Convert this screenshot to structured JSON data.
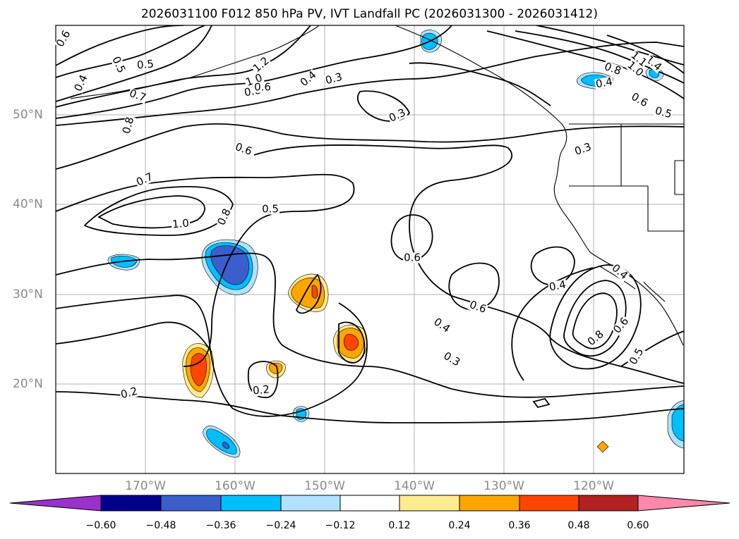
{
  "title": "2026031100 F012 850 hPa PV, IVT Landfall PC (2026031300 - 2026031412)",
  "axes": {
    "lat_labels": [
      "50°N",
      "40°N",
      "30°N",
      "20°N"
    ],
    "lon_labels": [
      "170°W",
      "160°W",
      "150°W",
      "140°W",
      "130°W",
      "120°W"
    ]
  },
  "contour_labels": [
    "0.6",
    "0.5",
    "0.5",
    "0.4",
    "0.7",
    "0.8",
    "1.2",
    "1.0",
    "0.8",
    "0.6",
    "0.4",
    "0.3",
    "0.3",
    "0.6",
    "0.7",
    "1.0",
    "0.8",
    "0.5",
    "0.3",
    "1.4",
    "1.1",
    "1.0",
    "0.8",
    "0.6",
    "0.5",
    "0.4",
    "0.6",
    "0.4",
    "0.6",
    "0.4",
    "0.3",
    "0.4",
    "0.6",
    "0.8",
    "0.5",
    "0.2",
    "0.2"
  ],
  "colorbar": {
    "ticks": [
      "−0.60",
      "−0.48",
      "−0.36",
      "−0.24",
      "−0.12",
      "0.12",
      "0.24",
      "0.36",
      "0.48",
      "0.60"
    ],
    "colors": [
      "#9932cc",
      "#00008b",
      "#3a5fcd",
      "#00bfff",
      "#b0e2ff",
      "#ffffff",
      "#fdeb8f",
      "#ffa500",
      "#ff4500",
      "#b22222",
      "#ff88aa"
    ]
  },
  "colors": {
    "grid": "#b0b0b0",
    "tick_label": "#8a8a8a",
    "contour": "#000000"
  }
}
